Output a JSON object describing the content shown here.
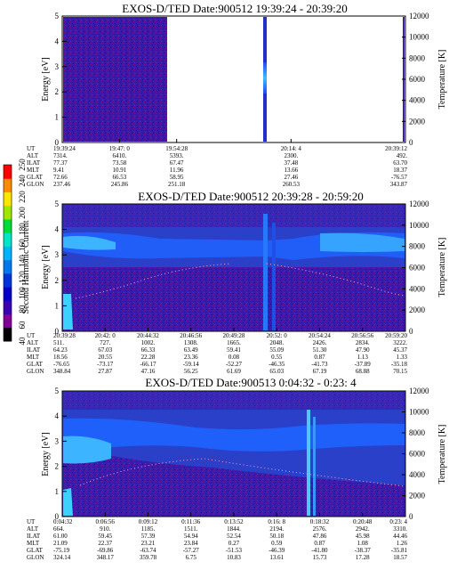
{
  "panels": [
    {
      "title": "EXOS-D/TED   Date:900512   19:39:24 - 20:39:20",
      "yticks": [
        "0",
        "1",
        "2",
        "3",
        "4",
        "5"
      ],
      "rticks": [
        "0",
        "2000",
        "4000",
        "6000",
        "8000",
        "10000",
        "12000"
      ],
      "ylabel": "Energy [eV]",
      "rlabel": "Temperature [K]",
      "rows": [
        {
          "name": "UT",
          "vals": [
            "19:39:24",
            "19:47: 0",
            "19:54:28",
            "",
            "20:14: 4",
            "",
            "20:39:12"
          ]
        },
        {
          "name": "ALT",
          "vals": [
            "7314.",
            "6410.",
            "5393.",
            "",
            "2300.",
            "",
            "492."
          ]
        },
        {
          "name": "ILAT",
          "vals": [
            "77.37",
            "73.58",
            "67.47",
            "",
            "37.48",
            "",
            "63.70"
          ]
        },
        {
          "name": "MLT",
          "vals": [
            "9.41",
            "10.91",
            "11.96",
            "",
            "13.66",
            "",
            "18.37"
          ]
        },
        {
          "name": "GLAT",
          "vals": [
            "72.66",
            "66.53",
            "58.95",
            "",
            "27.46",
            "",
            "-76.57"
          ]
        },
        {
          "name": "GLON",
          "vals": [
            "237.46",
            "245.86",
            "251.18",
            "",
            "260.53",
            "",
            "343.87"
          ]
        }
      ]
    },
    {
      "title": "EXOS-D/TED   Date:900512   20:39:28 - 20:59:20",
      "yticks": [
        "0",
        "1",
        "2",
        "3",
        "4",
        "5"
      ],
      "rticks": [
        "0",
        "2000",
        "4000",
        "6000",
        "8000",
        "10000",
        "12000"
      ],
      "ylabel": "Energy [eV]",
      "rlabel": "Temperature [K]",
      "rows": [
        {
          "name": "UT",
          "vals": [
            "20:39:28",
            "20:42: 0",
            "20:44:32",
            "20:46:56",
            "20:49:28",
            "20:52: 0",
            "20:54:24",
            "20:56:56",
            "20:59:20"
          ]
        },
        {
          "name": "ALT",
          "vals": [
            "511.",
            "727.",
            "1002.",
            "1308.",
            "1665.",
            "2048.",
            "2426.",
            "2834.",
            "3222."
          ]
        },
        {
          "name": "ILAT",
          "vals": [
            "64.23",
            "67.03",
            "66.33",
            "63.49",
            "59.41",
            "55.09",
            "51.30",
            "47.90",
            "45.37"
          ]
        },
        {
          "name": "MLT",
          "vals": [
            "18.56",
            "20.55",
            "22.28",
            "23.36",
            "0.08",
            "0.55",
            "0.87",
            "1.13",
            "1.33"
          ]
        },
        {
          "name": "GLAT",
          "vals": [
            "-76.65",
            "-73.17",
            "-66.17",
            "-59.14",
            "-52.27",
            "-46.35",
            "-41.73",
            "-37.89",
            "-35.18"
          ]
        },
        {
          "name": "GLON",
          "vals": [
            "348.84",
            "27.87",
            "47.16",
            "56.25",
            "61.69",
            "65.03",
            "67.19",
            "68.88",
            "70.15"
          ]
        }
      ]
    },
    {
      "title": "EXOS-D/TED   Date:900513   0:04:32 - 0:23: 4",
      "yticks": [
        "0",
        "1",
        "2",
        "3",
        "4",
        "5"
      ],
      "rticks": [
        "0",
        "2000",
        "4000",
        "6000",
        "8000",
        "10000",
        "12000"
      ],
      "ylabel": "Energy [eV]",
      "rlabel": "Temperature [K]",
      "rows": [
        {
          "name": "UT",
          "vals": [
            "0:04:32",
            "0:06:56",
            "0:09:12",
            "0:11:36",
            "0:13:52",
            "0:16: 8",
            "0:18:32",
            "0:20:48",
            "0:23: 4"
          ]
        },
        {
          "name": "ALT",
          "vals": [
            "664.",
            "910.",
            "1185.",
            "1511.",
            "1844.",
            "2194.",
            "2576.",
            "2942.",
            "3310."
          ]
        },
        {
          "name": "ILAT",
          "vals": [
            "61.00",
            "59.45",
            "57.39",
            "54.94",
            "52.54",
            "50.18",
            "47.86",
            "45.98",
            "44.46"
          ]
        },
        {
          "name": "MLT",
          "vals": [
            "21.09",
            "22.37",
            "23.21",
            "23.84",
            "0.27",
            "0.59",
            "0.87",
            "1.08",
            "1.26"
          ]
        },
        {
          "name": "GLAT",
          "vals": [
            "-75.19",
            "-69.86",
            "-63.74",
            "-57.27",
            "-51.53",
            "-46.39",
            "-41.80",
            "-38.37",
            "-35.81"
          ]
        },
        {
          "name": "GLON",
          "vals": [
            "324.14",
            "348.17",
            "359.78",
            "6.75",
            "10.83",
            "13.61",
            "15.73",
            "17.28",
            "18.57"
          ]
        }
      ]
    }
  ],
  "colorbar": {
    "label": "Second Harmonic Current",
    "ticks": [
      "40",
      "60",
      "80",
      "100",
      "120",
      "140",
      "160",
      "180",
      "200",
      "220",
      "240",
      "250"
    ],
    "colors": [
      "#000000",
      "#7f0096",
      "#3c00b4",
      "#0000c8",
      "#0032dc",
      "#0078f0",
      "#00b4ff",
      "#00e6c8",
      "#00dc3c",
      "#a0e600",
      "#ffe600",
      "#ff8c00",
      "#ff0000"
    ]
  },
  "chart_data": [
    {
      "type": "heatmap",
      "title": "EXOS-D/TED   Date:900512   19:39:24 - 20:39:20",
      "ylabel": "Energy [eV]",
      "y2label": "Temperature [K]",
      "ylim": [
        0,
        5
      ],
      "y2lim": [
        0,
        12000
      ],
      "x_ticks": [
        "19:39:24",
        "19:47: 0",
        "19:54:28",
        "20:14: 4",
        "20:39:12"
      ]
    },
    {
      "type": "heatmap",
      "title": "EXOS-D/TED   Date:900512   20:39:28 - 20:59:20",
      "ylabel": "Energy [eV]",
      "y2label": "Temperature [K]",
      "ylim": [
        0,
        5
      ],
      "y2lim": [
        0,
        12000
      ],
      "x_ticks": [
        "20:39:28",
        "20:42: 0",
        "20:44:32",
        "20:46:56",
        "20:49:28",
        "20:52: 0",
        "20:54:24",
        "20:56:56",
        "20:59:20"
      ]
    },
    {
      "type": "heatmap",
      "title": "EXOS-D/TED   Date:900513   0:04:32 - 0:23: 4",
      "ylabel": "Energy [eV]",
      "y2label": "Temperature [K]",
      "ylim": [
        0,
        5
      ],
      "y2lim": [
        0,
        12000
      ],
      "x_ticks": [
        "0:04:32",
        "0:06:56",
        "0:09:12",
        "0:11:36",
        "0:13:52",
        "0:16: 8",
        "0:18:32",
        "0:20:48",
        "0:23: 4"
      ]
    }
  ]
}
